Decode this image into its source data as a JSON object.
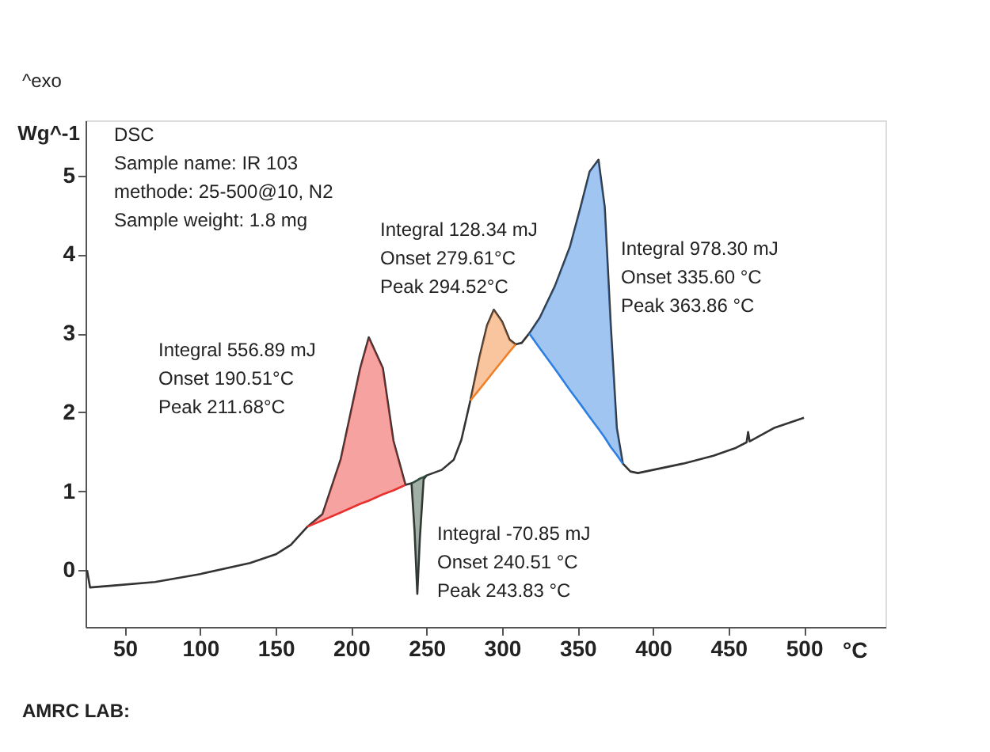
{
  "chart_data": {
    "type": "line",
    "xlabel": "°C",
    "ylabel": "Wg^-1",
    "xlim": [
      24,
      554
    ],
    "ylim": [
      -0.72,
      5.7
    ],
    "xticks": [
      50,
      100,
      150,
      200,
      250,
      300,
      350,
      400,
      450,
      500
    ],
    "yticks": [
      0,
      1,
      2,
      3,
      4,
      5
    ],
    "grid": false,
    "legend": false,
    "marker": "none",
    "line_style": "solid",
    "series": [
      {
        "color": "#333333",
        "x": [
          25,
          27,
          40,
          70,
          100,
          133,
          150,
          160,
          171,
          181,
          193,
          206,
          211.68,
          221,
          228,
          236,
          240,
          242,
          243.83,
          245.5,
          248,
          250,
          260,
          268,
          273,
          279,
          285,
          290,
          294.52,
          300,
          305,
          309,
          313,
          318,
          325,
          335,
          345,
          352,
          358,
          363.86,
          368,
          372,
          376,
          380,
          385,
          390,
          400,
          420,
          440,
          455,
          462,
          463,
          464,
          480,
          500
        ],
        "values": [
          0.0,
          -0.22,
          -0.2,
          -0.15,
          -0.05,
          0.09,
          0.2,
          0.32,
          0.55,
          0.71,
          1.4,
          2.56,
          2.95,
          2.56,
          1.64,
          1.08,
          1.1,
          0.5,
          -0.3,
          0.4,
          1.15,
          1.2,
          1.27,
          1.4,
          1.65,
          2.15,
          2.7,
          3.1,
          3.3,
          3.15,
          2.92,
          2.86,
          2.88,
          3.0,
          3.2,
          3.6,
          4.1,
          4.6,
          5.05,
          5.2,
          4.6,
          3.1,
          1.8,
          1.35,
          1.25,
          1.23,
          1.27,
          1.35,
          1.45,
          1.55,
          1.62,
          1.75,
          1.63,
          1.8,
          1.93
        ]
      },
      {
        "type": "line",
        "color": "#e8312f",
        "x": [
          171,
          181,
          193,
          206,
          211.68,
          221,
          228,
          236
        ],
        "values": [
          0.55,
          0.63,
          0.73,
          0.84,
          0.88,
          0.96,
          1.01,
          1.08
        ],
        "lower": [
          0.55,
          0.63,
          0.73,
          0.84,
          0.88,
          0.96,
          1.01,
          1.08
        ],
        "upper": [
          0.55,
          0.71,
          1.4,
          2.56,
          2.95,
          2.56,
          1.64,
          1.08
        ]
      },
      {
        "type": "line",
        "color": "#2e4d3c",
        "x": [
          240,
          242,
          243.83,
          245.5,
          248,
          250
        ],
        "values": [
          1.1,
          1.12,
          1.14,
          1.16,
          1.18,
          1.2
        ],
        "lower": [
          1.1,
          0.5,
          -0.3,
          0.4,
          1.15,
          1.2
        ],
        "upper": [
          1.1,
          1.12,
          1.14,
          1.16,
          1.18,
          1.2
        ]
      },
      {
        "type": "line",
        "color": "#f07f2a",
        "x": [
          279,
          285,
          290,
          294.52,
          300,
          305,
          309
        ],
        "values": [
          2.15,
          2.29,
          2.41,
          2.52,
          2.65,
          2.77,
          2.86
        ],
        "lower": [
          2.15,
          2.29,
          2.41,
          2.52,
          2.65,
          2.77,
          2.86
        ],
        "upper": [
          2.15,
          2.7,
          3.1,
          3.3,
          3.15,
          2.92,
          2.86
        ]
      },
      {
        "type": "line",
        "color": "#2f7fe0",
        "x": [
          318,
          325,
          335,
          345,
          352,
          358,
          363.86,
          368,
          372,
          376,
          380
        ],
        "values": [
          3.0,
          2.81,
          2.55,
          2.28,
          2.1,
          1.94,
          1.79,
          1.68,
          1.56,
          1.46,
          1.35
        ],
        "lower": [
          3.0,
          2.81,
          2.55,
          2.28,
          2.1,
          1.94,
          1.79,
          1.68,
          1.56,
          1.46,
          1.35
        ],
        "upper": [
          3.0,
          3.2,
          3.6,
          4.1,
          4.6,
          5.05,
          5.2,
          4.6,
          3.1,
          1.8,
          1.35
        ]
      }
    ],
    "annotations": [
      "^exo",
      "DSC\nSample name: IR 103\nmethode: 25-500@10, N2\nSample weight: 1.8 mg",
      "Integral  556.89 mJ\nOnset     190.51°C\nPeak       211.68°C",
      "Integral  -70.85 mJ\nOnset     240.51 °C\nPeak       243.83 °C",
      "Integral  128.34 mJ\nOnset     279.61°C\nPeak       294.52°C",
      "Integral  978.30 mJ\nOnset     335.60 °C\nPeak       363.86 °C",
      "AMRC LAB:"
    ]
  }
}
